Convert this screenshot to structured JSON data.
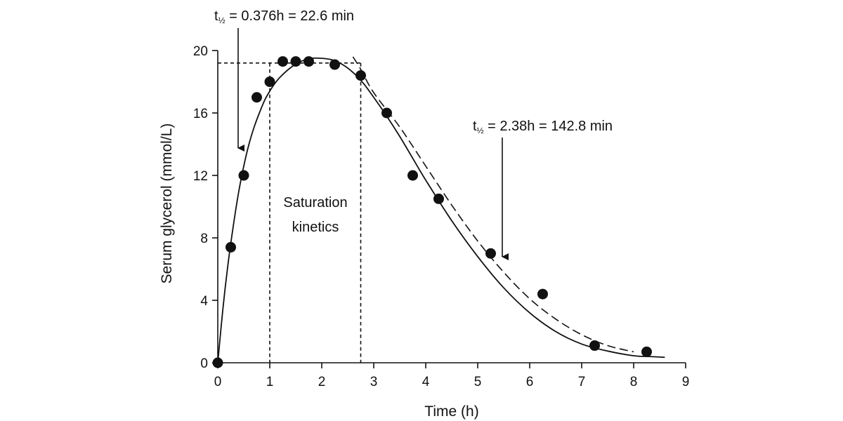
{
  "chart_data": {
    "type": "scatter",
    "xlabel": "Time (h)",
    "ylabel": "Serum glycerol (mmol/L)",
    "xlim": [
      0,
      9
    ],
    "ylim": [
      0,
      20
    ],
    "x_ticks": [
      "0",
      "1",
      "2",
      "3",
      "4",
      "5",
      "6",
      "7",
      "8",
      "9"
    ],
    "y_ticks": [
      "0",
      "4",
      "8",
      "12",
      "16",
      "20"
    ],
    "grid": false,
    "points": {
      "x": [
        0,
        0.25,
        0.5,
        0.75,
        1.0,
        1.25,
        1.5,
        1.75,
        2.25,
        2.75,
        3.25,
        3.75,
        4.25,
        5.25,
        6.25,
        7.25,
        8.25
      ],
      "y": [
        0,
        7.4,
        12.0,
        17.0,
        18.0,
        19.3,
        19.3,
        19.3,
        19.1,
        18.4,
        16.0,
        12.0,
        10.5,
        7.0,
        4.4,
        1.1,
        0.7
      ]
    },
    "fit_curve": {
      "x": [
        0,
        0.1,
        0.2,
        0.3,
        0.4,
        0.5,
        0.6,
        0.7,
        0.8,
        0.9,
        1.0,
        1.1,
        1.2,
        1.4,
        1.6,
        1.8,
        2.0,
        2.2,
        2.4,
        2.6,
        2.8,
        3.0,
        3.25,
        3.5,
        3.75,
        4.0,
        4.5,
        5.0,
        5.5,
        6.0,
        6.5,
        7.0,
        7.5,
        8.0,
        8.3,
        8.6
      ],
      "y": [
        0,
        3.5,
        6.4,
        8.8,
        10.9,
        12.6,
        14.0,
        15.1,
        16.0,
        16.8,
        17.4,
        17.9,
        18.3,
        18.9,
        19.3,
        19.5,
        19.5,
        19.4,
        19.1,
        18.6,
        17.9,
        17.0,
        15.8,
        14.5,
        13.1,
        11.7,
        9.1,
        6.8,
        4.8,
        3.2,
        2.0,
        1.2,
        0.75,
        0.45,
        0.4,
        0.35
      ]
    },
    "dashed_line": {
      "x": [
        2.6,
        2.75,
        3.0,
        3.5,
        4.0,
        4.5,
        5.0,
        5.5,
        6.0,
        6.5,
        7.0,
        7.5,
        8.0
      ],
      "y": [
        19.6,
        18.8,
        17.3,
        15.1,
        12.6,
        10.1,
        7.8,
        5.8,
        4.1,
        2.8,
        1.8,
        1.1,
        0.7
      ]
    },
    "saturation_box": {
      "x1": 1.0,
      "x2": 2.75,
      "y": 19.2
    },
    "annotations": {
      "half_life_1": {
        "prefix": "t",
        "sub": "½",
        "text": " = 0.376h = 22.6 min"
      },
      "half_life_2": {
        "prefix": "t",
        "sub": "½",
        "text": " = 2.38h = 142.8 min"
      },
      "saturation": {
        "line1": "Saturation",
        "line2": "kinetics"
      }
    }
  }
}
